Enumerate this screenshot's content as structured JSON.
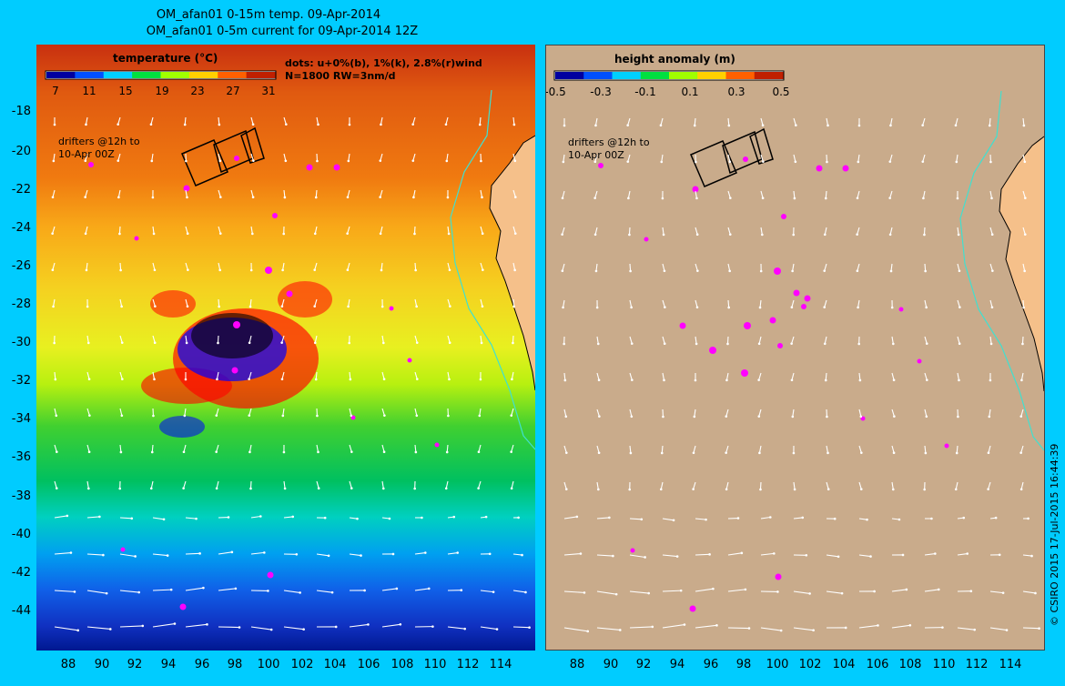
{
  "titles": {
    "line1": "OM_afan01 0-15m temp. 09-Apr-2014",
    "line2": "OM_afan01 0-5m current for 09-Apr-2014 12Z"
  },
  "left_panel": {
    "colorbar_title": "temperature (°C)",
    "colorbar_ticks": [
      "7",
      "11",
      "15",
      "19",
      "23",
      "27",
      "31"
    ],
    "colorbar_colors": [
      "#0000a0",
      "#0050ff",
      "#00d0ff",
      "#00e040",
      "#a0ff00",
      "#ffd000",
      "#ff6000",
      "#c02000"
    ],
    "dots_note_line1": "dots: u+0%(b), 1%(k), 2.8%(r)wind",
    "dots_note_line2": "N=1800 RW=3nm/d",
    "drifters_note_line1": "drifters @12h to",
    "drifters_note_line2": "10-Apr 00Z"
  },
  "right_panel": {
    "colorbar_title": "height anomaly (m)",
    "colorbar_ticks": [
      "-0.5",
      "-0.3",
      "-0.1",
      "0.1",
      "0.3",
      "0.5"
    ],
    "colorbar_colors": [
      "#0000a0",
      "#0050ff",
      "#00d0ff",
      "#00e040",
      "#a0ff00",
      "#ffd000",
      "#ff6000",
      "#c02000"
    ],
    "drifters_note_line1": "drifters @12h to",
    "drifters_note_line2": "10-Apr 00Z",
    "background_color": "#c9ab8b"
  },
  "axes": {
    "y_ticks": [
      "-18",
      "-20",
      "-22",
      "-24",
      "-26",
      "-28",
      "-30",
      "-32",
      "-34",
      "-36",
      "-38",
      "-40",
      "-42",
      "-44"
    ],
    "x_ticks": [
      "88",
      "90",
      "92",
      "94",
      "96",
      "98",
      "100",
      "102",
      "104",
      "106",
      "108",
      "110",
      "112",
      "114"
    ]
  },
  "copyright": "© CSIRO 2015  17-Jul-2015 16:44:39",
  "colors": {
    "frame": "#00ccff",
    "land": "#f5c08a",
    "drifter": "#ff00ff",
    "isobath": "#40e0d0",
    "current_arrow": "#ffffff"
  }
}
